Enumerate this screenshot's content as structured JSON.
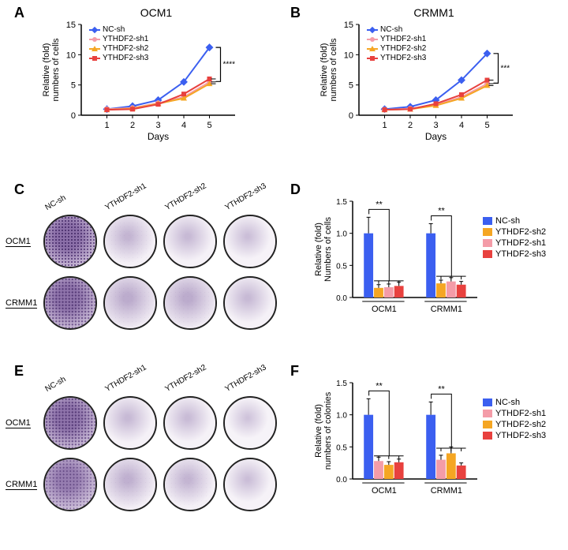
{
  "colors": {
    "nc": "#3b5ff0",
    "sh1": "#f49ca8",
    "sh2": "#f5a623",
    "sh3": "#e8413e",
    "axis": "#000000",
    "well_border": "#222222",
    "well_dense": "#8b6fa8",
    "well_sparse": "#d8c8dd",
    "well_faint": "#eae2ee"
  },
  "panelA": {
    "label": "A",
    "title": "OCM1",
    "ylabel": "Relative (fold)\nnumbers of cells",
    "xlabel": "Days",
    "xlim": [
      0,
      6
    ],
    "xtick_step": 1,
    "ylim": [
      0,
      15
    ],
    "ytick_step": 5,
    "sig": "****",
    "series": [
      {
        "name": "NC-sh",
        "color": "#3b5ff0",
        "marker": "diamond",
        "x": [
          1,
          2,
          3,
          4,
          5
        ],
        "y": [
          1.0,
          1.5,
          2.5,
          5.5,
          11.2
        ]
      },
      {
        "name": "YTHDF2-sh1",
        "color": "#f49ca8",
        "marker": "circle",
        "x": [
          1,
          2,
          3,
          4,
          5
        ],
        "y": [
          1.0,
          1.2,
          2.0,
          3.0,
          5.5
        ]
      },
      {
        "name": "YTHDF2-sh2",
        "color": "#f5a623",
        "marker": "tri",
        "x": [
          1,
          2,
          3,
          4,
          5
        ],
        "y": [
          0.9,
          1.1,
          1.9,
          2.8,
          5.2
        ]
      },
      {
        "name": "YTHDF2-sh3",
        "color": "#e8413e",
        "marker": "square",
        "x": [
          1,
          2,
          3,
          4,
          5
        ],
        "y": [
          0.9,
          1.0,
          1.8,
          3.5,
          6.0
        ]
      }
    ]
  },
  "panelB": {
    "label": "B",
    "title": "CRMM1",
    "ylabel": "Relative (fold)\nnumbers of cells",
    "xlabel": "Days",
    "xlim": [
      0,
      6
    ],
    "xtick_step": 1,
    "ylim": [
      0,
      15
    ],
    "ytick_step": 5,
    "sig": "***",
    "series": [
      {
        "name": "NC-sh",
        "color": "#3b5ff0",
        "marker": "diamond",
        "x": [
          1,
          2,
          3,
          4,
          5
        ],
        "y": [
          1.0,
          1.4,
          2.5,
          5.8,
          10.2
        ]
      },
      {
        "name": "YTHDF2-sh1",
        "color": "#f49ca8",
        "marker": "circle",
        "x": [
          1,
          2,
          3,
          4,
          5
        ],
        "y": [
          0.9,
          1.1,
          1.7,
          3.0,
          5.2
        ]
      },
      {
        "name": "YTHDF2-sh2",
        "color": "#f5a623",
        "marker": "tri",
        "x": [
          1,
          2,
          3,
          4,
          5
        ],
        "y": [
          0.9,
          1.0,
          1.6,
          2.8,
          4.9
        ]
      },
      {
        "name": "YTHDF2-sh3",
        "color": "#e8413e",
        "marker": "square",
        "x": [
          1,
          2,
          3,
          4,
          5
        ],
        "y": [
          0.9,
          1.0,
          1.9,
          3.4,
          5.8
        ]
      }
    ]
  },
  "panelC": {
    "label": "C",
    "col_labels": [
      "NC-sh",
      "YTHDF2-sh1",
      "YTHDF2-sh2",
      "YTHDF2-sh3"
    ],
    "row_labels": [
      "OCM1",
      "CRMM1"
    ],
    "density": [
      [
        1.0,
        0.25,
        0.2,
        0.15
      ],
      [
        0.95,
        0.35,
        0.35,
        0.2
      ]
    ]
  },
  "panelD": {
    "label": "D",
    "ylabel": "Relative (fold)\nNumbers of cells",
    "ylim": [
      0,
      1.5
    ],
    "ytick_step": 0.5,
    "sig": "**",
    "groups": [
      "OCM1",
      "CRMM1"
    ],
    "legend": [
      "NC-sh",
      "YTHDF2-sh2",
      "YTHDF2-sh1",
      "YTHDF2-sh3"
    ],
    "legend_colors": [
      "#3b5ff0",
      "#f5a623",
      "#f49ca8",
      "#e8413e"
    ],
    "bars": [
      {
        "group": "OCM1",
        "vals": [
          1.0,
          0.15,
          0.16,
          0.18
        ],
        "err": [
          0.25,
          0.05,
          0.05,
          0.06
        ],
        "colors": [
          "#3b5ff0",
          "#f5a623",
          "#f49ca8",
          "#e8413e"
        ]
      },
      {
        "group": "CRMM1",
        "vals": [
          1.0,
          0.22,
          0.25,
          0.2
        ],
        "err": [
          0.15,
          0.05,
          0.06,
          0.05
        ],
        "colors": [
          "#3b5ff0",
          "#f5a623",
          "#f49ca8",
          "#e8413e"
        ]
      }
    ]
  },
  "panelE": {
    "label": "E",
    "col_labels": [
      "NC-sh",
      "YTHDF2-sh1",
      "YTHDF2-sh2",
      "YTHDF2-sh3"
    ],
    "row_labels": [
      "OCM1",
      "CRMM1"
    ],
    "density": [
      [
        0.95,
        0.2,
        0.18,
        0.1
      ],
      [
        0.85,
        0.3,
        0.25,
        0.15
      ]
    ]
  },
  "panelF": {
    "label": "F",
    "ylabel": "Relative (fold)\nnumbers of colonies",
    "ylim": [
      0,
      1.5
    ],
    "ytick_step": 0.5,
    "sig": "**",
    "groups": [
      "OCM1",
      "CRMM1"
    ],
    "legend": [
      "NC-sh",
      "YTHDF2-sh1",
      "YTHDF2-sh2",
      "YTHDF2-sh3"
    ],
    "legend_colors": [
      "#3b5ff0",
      "#f49ca8",
      "#f5a623",
      "#e8413e"
    ],
    "bars": [
      {
        "group": "OCM1",
        "vals": [
          1.0,
          0.28,
          0.22,
          0.26
        ],
        "err": [
          0.25,
          0.06,
          0.05,
          0.05
        ],
        "colors": [
          "#3b5ff0",
          "#f49ca8",
          "#f5a623",
          "#e8413e"
        ]
      },
      {
        "group": "CRMM1",
        "vals": [
          1.0,
          0.3,
          0.4,
          0.21
        ],
        "err": [
          0.2,
          0.07,
          0.1,
          0.04
        ],
        "colors": [
          "#3b5ff0",
          "#f49ca8",
          "#f5a623",
          "#e8413e"
        ]
      }
    ]
  }
}
